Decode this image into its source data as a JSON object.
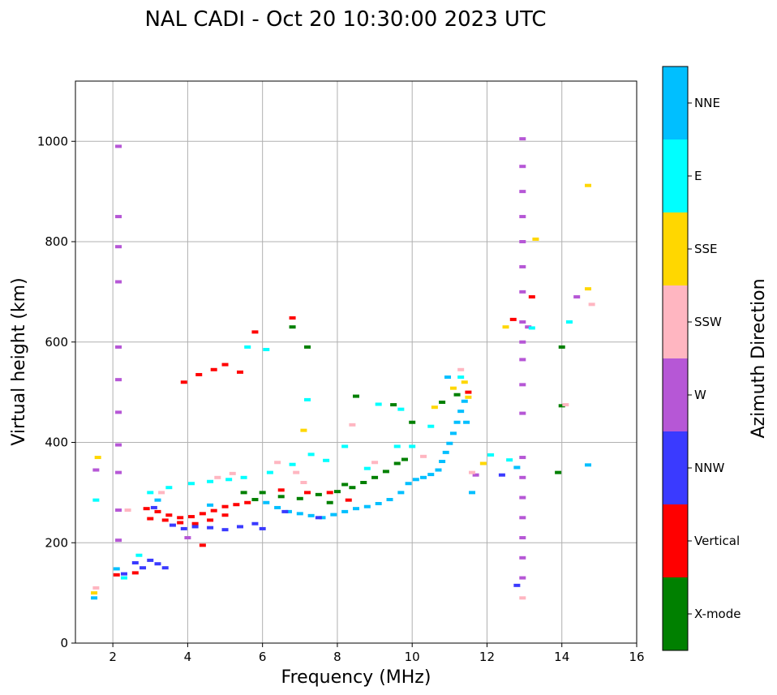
{
  "chart_data": {
    "type": "scatter",
    "title": "NAL CADI - Oct 20 10:30:00 2023 UTC",
    "xlabel": "Frequency (MHz)",
    "ylabel": "Virtual height (km)",
    "xlim": [
      1,
      16
    ],
    "ylim": [
      0,
      1120
    ],
    "grid": true,
    "xticks": [
      2,
      4,
      6,
      8,
      10,
      12,
      14,
      16
    ],
    "yticks": [
      0,
      200,
      400,
      600,
      800,
      1000
    ],
    "colorbar": {
      "label": "Azimuth Direction",
      "categories": [
        {
          "name": "X-mode",
          "color": "#008000"
        },
        {
          "name": "Vertical",
          "color": "#ff0000"
        },
        {
          "name": "NNW",
          "color": "#3a3aff"
        },
        {
          "name": "W",
          "color": "#b657d6"
        },
        {
          "name": "SSW",
          "color": "#ffb6c1"
        },
        {
          "name": "SSE",
          "color": "#ffd700"
        },
        {
          "name": "E",
          "color": "#00ffff"
        },
        {
          "name": "NNE",
          "color": "#00bfff"
        }
      ]
    },
    "series": [
      {
        "name": "O-trace NNE",
        "color": "#00bfff",
        "points": [
          [
            6.1,
            280
          ],
          [
            6.4,
            270
          ],
          [
            6.7,
            262
          ],
          [
            7.0,
            258
          ],
          [
            7.3,
            254
          ],
          [
            7.6,
            250
          ],
          [
            7.9,
            256
          ],
          [
            8.2,
            262
          ],
          [
            8.5,
            268
          ],
          [
            8.8,
            272
          ],
          [
            9.1,
            278
          ],
          [
            9.4,
            286
          ],
          [
            9.7,
            300
          ],
          [
            9.9,
            318
          ],
          [
            10.1,
            326
          ],
          [
            10.3,
            330
          ],
          [
            10.5,
            336
          ],
          [
            10.7,
            345
          ],
          [
            10.8,
            362
          ],
          [
            10.9,
            380
          ],
          [
            11.0,
            398
          ],
          [
            11.1,
            418
          ],
          [
            11.2,
            440
          ],
          [
            11.3,
            462
          ],
          [
            11.4,
            482
          ],
          [
            10.95,
            530
          ],
          [
            11.45,
            440
          ],
          [
            12.8,
            350
          ],
          [
            14.7,
            355
          ],
          [
            11.6,
            300
          ],
          [
            2.1,
            148
          ],
          [
            1.5,
            90
          ],
          [
            3.2,
            285
          ],
          [
            4.6,
            275
          ]
        ]
      },
      {
        "name": "X-mode",
        "color": "#008000",
        "points": [
          [
            6.0,
            300
          ],
          [
            6.5,
            292
          ],
          [
            7.0,
            288
          ],
          [
            7.5,
            296
          ],
          [
            8.0,
            302
          ],
          [
            8.4,
            310
          ],
          [
            8.7,
            320
          ],
          [
            9.0,
            330
          ],
          [
            9.3,
            342
          ],
          [
            9.6,
            358
          ],
          [
            9.8,
            366
          ],
          [
            10.0,
            440
          ],
          [
            8.5,
            492
          ],
          [
            9.5,
            475
          ],
          [
            10.8,
            480
          ],
          [
            11.2,
            495
          ],
          [
            13.9,
            340
          ],
          [
            14.0,
            590
          ],
          [
            14.0,
            473
          ],
          [
            6.8,
            630
          ],
          [
            7.2,
            590
          ],
          [
            7.8,
            280
          ],
          [
            8.2,
            316
          ],
          [
            5.5,
            300
          ],
          [
            5.8,
            286
          ]
        ]
      },
      {
        "name": "Vertical",
        "color": "#ff0000",
        "points": [
          [
            2.9,
            268
          ],
          [
            3.2,
            262
          ],
          [
            3.5,
            255
          ],
          [
            3.8,
            250
          ],
          [
            4.1,
            252
          ],
          [
            4.4,
            258
          ],
          [
            4.7,
            264
          ],
          [
            5.0,
            272
          ],
          [
            5.3,
            276
          ],
          [
            5.6,
            280
          ],
          [
            3.0,
            248
          ],
          [
            3.4,
            245
          ],
          [
            3.8,
            240
          ],
          [
            4.2,
            238
          ],
          [
            4.6,
            245
          ],
          [
            5.0,
            255
          ],
          [
            4.3,
            535
          ],
          [
            4.7,
            545
          ],
          [
            5.0,
            555
          ],
          [
            5.4,
            540
          ],
          [
            5.8,
            620
          ],
          [
            6.8,
            648
          ],
          [
            12.7,
            645
          ],
          [
            13.2,
            690
          ],
          [
            11.5,
            500
          ],
          [
            4.4,
            195
          ],
          [
            3.9,
            520
          ],
          [
            6.5,
            305
          ],
          [
            7.2,
            300
          ],
          [
            7.8,
            300
          ],
          [
            8.3,
            285
          ],
          [
            2.1,
            136
          ],
          [
            2.6,
            140
          ]
        ]
      },
      {
        "name": "NNW",
        "color": "#3a3aff",
        "points": [
          [
            2.8,
            150
          ],
          [
            3.0,
            165
          ],
          [
            3.2,
            158
          ],
          [
            3.4,
            150
          ],
          [
            3.6,
            235
          ],
          [
            3.9,
            228
          ],
          [
            4.2,
            232
          ],
          [
            4.6,
            230
          ],
          [
            5.0,
            226
          ],
          [
            5.4,
            232
          ],
          [
            5.8,
            238
          ],
          [
            6.0,
            228
          ],
          [
            2.3,
            138
          ],
          [
            2.6,
            160
          ],
          [
            12.4,
            335
          ],
          [
            12.8,
            115
          ],
          [
            3.1,
            270
          ],
          [
            6.6,
            262
          ],
          [
            7.5,
            250
          ]
        ]
      },
      {
        "name": "W",
        "color": "#b657d6",
        "points": [
          [
            2.15,
            990
          ],
          [
            2.15,
            850
          ],
          [
            2.15,
            790
          ],
          [
            2.15,
            720
          ],
          [
            2.15,
            590
          ],
          [
            2.15,
            525
          ],
          [
            2.15,
            460
          ],
          [
            2.15,
            395
          ],
          [
            2.15,
            340
          ],
          [
            2.15,
            265
          ],
          [
            2.15,
            205
          ],
          [
            1.55,
            345
          ],
          [
            12.95,
            1005
          ],
          [
            12.95,
            950
          ],
          [
            12.95,
            900
          ],
          [
            12.95,
            850
          ],
          [
            12.95,
            800
          ],
          [
            12.95,
            750
          ],
          [
            12.95,
            700
          ],
          [
            12.95,
            640
          ],
          [
            12.95,
            600
          ],
          [
            12.95,
            565
          ],
          [
            12.95,
            515
          ],
          [
            12.95,
            458
          ],
          [
            12.95,
            370
          ],
          [
            12.95,
            330
          ],
          [
            12.95,
            290
          ],
          [
            12.95,
            250
          ],
          [
            12.95,
            210
          ],
          [
            12.95,
            170
          ],
          [
            12.95,
            130
          ],
          [
            11.7,
            335
          ],
          [
            14.4,
            690
          ],
          [
            4.0,
            210
          ],
          [
            13.1,
            630
          ]
        ]
      },
      {
        "name": "SSW",
        "color": "#ffb6c1",
        "points": [
          [
            2.4,
            265
          ],
          [
            3.3,
            300
          ],
          [
            4.8,
            330
          ],
          [
            5.2,
            338
          ],
          [
            6.4,
            360
          ],
          [
            7.1,
            320
          ],
          [
            8.4,
            435
          ],
          [
            9.0,
            360
          ],
          [
            10.3,
            372
          ],
          [
            11.3,
            545
          ],
          [
            12.95,
            90
          ],
          [
            14.8,
            675
          ],
          [
            14.1,
            475
          ],
          [
            1.55,
            110
          ],
          [
            11.6,
            340
          ],
          [
            6.9,
            340
          ]
        ]
      },
      {
        "name": "SSE",
        "color": "#ffd700",
        "points": [
          [
            1.5,
            100
          ],
          [
            1.6,
            370
          ],
          [
            10.6,
            470
          ],
          [
            11.1,
            508
          ],
          [
            11.4,
            520
          ],
          [
            11.5,
            490
          ],
          [
            11.9,
            358
          ],
          [
            12.5,
            630
          ],
          [
            13.3,
            805
          ],
          [
            14.7,
            912
          ],
          [
            14.7,
            706
          ],
          [
            7.1,
            424
          ]
        ]
      },
      {
        "name": "E",
        "color": "#00ffff",
        "points": [
          [
            2.3,
            130
          ],
          [
            2.7,
            175
          ],
          [
            3.0,
            300
          ],
          [
            3.5,
            310
          ],
          [
            4.1,
            318
          ],
          [
            4.6,
            322
          ],
          [
            5.1,
            326
          ],
          [
            5.5,
            330
          ],
          [
            5.6,
            590
          ],
          [
            6.1,
            585
          ],
          [
            6.2,
            340
          ],
          [
            6.8,
            356
          ],
          [
            7.3,
            376
          ],
          [
            7.7,
            364
          ],
          [
            8.2,
            392
          ],
          [
            8.8,
            348
          ],
          [
            9.6,
            392
          ],
          [
            10.0,
            392
          ],
          [
            10.5,
            432
          ],
          [
            11.3,
            530
          ],
          [
            12.1,
            375
          ],
          [
            12.6,
            365
          ],
          [
            13.2,
            628
          ],
          [
            14.2,
            640
          ],
          [
            7.2,
            485
          ],
          [
            9.1,
            476
          ],
          [
            9.7,
            466
          ],
          [
            1.55,
            285
          ]
        ]
      }
    ]
  }
}
